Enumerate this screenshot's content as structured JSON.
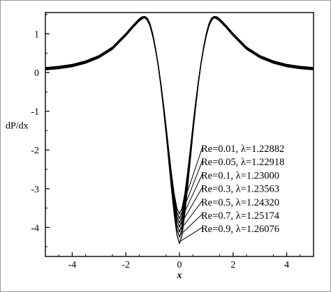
{
  "chart_data": {
    "type": "line",
    "title": "",
    "xlabel": "x",
    "ylabel": "dP/dx",
    "xlim": [
      -5,
      5
    ],
    "ylim": [
      -4.75,
      1.55
    ],
    "x_ticks": [
      -4,
      -2,
      0,
      2,
      4
    ],
    "x_tick_labels": [
      "-4",
      "-2",
      "0",
      "2",
      "4"
    ],
    "y_ticks": [
      1,
      0,
      -1,
      -2,
      -3,
      -4
    ],
    "y_tick_labels": [
      "1",
      "0",
      "-1",
      "-2",
      "-3",
      "-4"
    ],
    "grid": false,
    "legend_placement": "center-right",
    "x": [
      -5,
      -4.5,
      -4,
      -3.5,
      -3,
      -2.5,
      -2,
      -1.75,
      -1.5,
      -1.4,
      -1.3,
      -1.2,
      -1.1,
      -1,
      -0.9,
      -0.8,
      -0.7,
      -0.6,
      -0.5,
      -0.4,
      -0.3,
      -0.2,
      -0.1,
      0,
      0.1,
      0.2,
      0.3,
      0.4,
      0.5,
      0.6,
      0.7,
      0.8,
      0.9,
      1,
      1.1,
      1.2,
      1.3,
      1.4,
      1.5,
      1.75,
      2,
      2.5,
      3,
      3.5,
      4,
      4.5,
      5
    ],
    "series": [
      {
        "name": "Re=0.01, λ=1.22882",
        "values": [
          0.07,
          0.1,
          0.15,
          0.24,
          0.38,
          0.6,
          0.95,
          1.15,
          1.33,
          1.38,
          1.42,
          1.35,
          1.2,
          0.95,
          0.62,
          0.22,
          -0.25,
          -0.8,
          -1.38,
          -2.0,
          -2.6,
          -3.12,
          -3.5,
          -3.65,
          -3.5,
          -3.12,
          -2.6,
          -2.0,
          -1.38,
          -0.8,
          -0.25,
          0.22,
          0.62,
          0.95,
          1.2,
          1.35,
          1.42,
          1.38,
          1.33,
          1.15,
          0.95,
          0.6,
          0.38,
          0.24,
          0.15,
          0.1,
          0.07
        ]
      },
      {
        "name": "Re=0.05, λ=1.22918",
        "values": [
          0.08,
          0.11,
          0.16,
          0.25,
          0.39,
          0.61,
          0.96,
          1.16,
          1.34,
          1.39,
          1.42,
          1.36,
          1.21,
          0.96,
          0.63,
          0.22,
          -0.26,
          -0.82,
          -1.41,
          -2.04,
          -2.66,
          -3.2,
          -3.6,
          -3.77,
          -3.6,
          -3.2,
          -2.66,
          -2.04,
          -1.41,
          -0.82,
          -0.26,
          0.22,
          0.63,
          0.96,
          1.21,
          1.36,
          1.42,
          1.39,
          1.34,
          1.16,
          0.96,
          0.61,
          0.39,
          0.25,
          0.16,
          0.11,
          0.08
        ]
      },
      {
        "name": "Re=0.1, λ=1.23000",
        "values": [
          0.09,
          0.12,
          0.17,
          0.26,
          0.4,
          0.62,
          0.97,
          1.17,
          1.35,
          1.4,
          1.43,
          1.37,
          1.22,
          0.97,
          0.63,
          0.22,
          -0.27,
          -0.84,
          -1.44,
          -2.08,
          -2.72,
          -3.28,
          -3.7,
          -3.88,
          -3.7,
          -3.28,
          -2.72,
          -2.08,
          -1.44,
          -0.84,
          -0.27,
          0.22,
          0.63,
          0.97,
          1.22,
          1.37,
          1.43,
          1.4,
          1.35,
          1.17,
          0.97,
          0.62,
          0.4,
          0.26,
          0.17,
          0.12,
          0.09
        ]
      },
      {
        "name": "Re=0.3, λ=1.23563",
        "values": [
          0.1,
          0.13,
          0.18,
          0.27,
          0.41,
          0.63,
          0.98,
          1.18,
          1.36,
          1.41,
          1.43,
          1.38,
          1.23,
          0.98,
          0.64,
          0.22,
          -0.28,
          -0.86,
          -1.47,
          -2.12,
          -2.78,
          -3.36,
          -3.8,
          -3.99,
          -3.8,
          -3.36,
          -2.78,
          -2.12,
          -1.47,
          -0.86,
          -0.28,
          0.22,
          0.64,
          0.98,
          1.23,
          1.38,
          1.43,
          1.41,
          1.36,
          1.18,
          0.98,
          0.63,
          0.41,
          0.27,
          0.18,
          0.13,
          0.1
        ]
      },
      {
        "name": "Re=0.5, λ=1.24320",
        "values": [
          0.11,
          0.14,
          0.19,
          0.28,
          0.42,
          0.64,
          0.99,
          1.19,
          1.37,
          1.42,
          1.44,
          1.39,
          1.24,
          0.99,
          0.64,
          0.22,
          -0.29,
          -0.88,
          -1.5,
          -2.17,
          -2.85,
          -3.45,
          -3.92,
          -4.12,
          -3.92,
          -3.45,
          -2.85,
          -2.17,
          -1.5,
          -0.88,
          -0.29,
          0.22,
          0.64,
          0.99,
          1.24,
          1.39,
          1.44,
          1.42,
          1.37,
          1.19,
          0.99,
          0.64,
          0.42,
          0.28,
          0.19,
          0.14,
          0.11
        ]
      },
      {
        "name": "Re=0.7, λ=1.25174",
        "values": [
          0.12,
          0.15,
          0.2,
          0.29,
          0.43,
          0.65,
          1.0,
          1.2,
          1.38,
          1.43,
          1.44,
          1.4,
          1.25,
          1.0,
          0.65,
          0.22,
          -0.3,
          -0.9,
          -1.53,
          -2.22,
          -2.92,
          -3.54,
          -4.04,
          -4.25,
          -4.04,
          -3.54,
          -2.92,
          -2.22,
          -1.53,
          -0.9,
          -0.3,
          0.22,
          0.65,
          1.0,
          1.25,
          1.4,
          1.44,
          1.43,
          1.38,
          1.2,
          1.0,
          0.65,
          0.43,
          0.29,
          0.2,
          0.15,
          0.12
        ]
      },
      {
        "name": "Re=0.9, λ=1.26076",
        "values": [
          0.13,
          0.16,
          0.21,
          0.3,
          0.44,
          0.66,
          1.01,
          1.21,
          1.39,
          1.44,
          1.45,
          1.41,
          1.26,
          1.01,
          0.66,
          0.22,
          -0.31,
          -0.92,
          -1.57,
          -2.28,
          -3.0,
          -3.64,
          -4.18,
          -4.42,
          -4.18,
          -3.64,
          -3.0,
          -2.28,
          -1.57,
          -0.92,
          -0.31,
          0.22,
          0.66,
          1.01,
          1.26,
          1.41,
          1.45,
          1.44,
          1.39,
          1.21,
          1.01,
          0.66,
          0.44,
          0.3,
          0.21,
          0.16,
          0.13
        ]
      }
    ]
  }
}
